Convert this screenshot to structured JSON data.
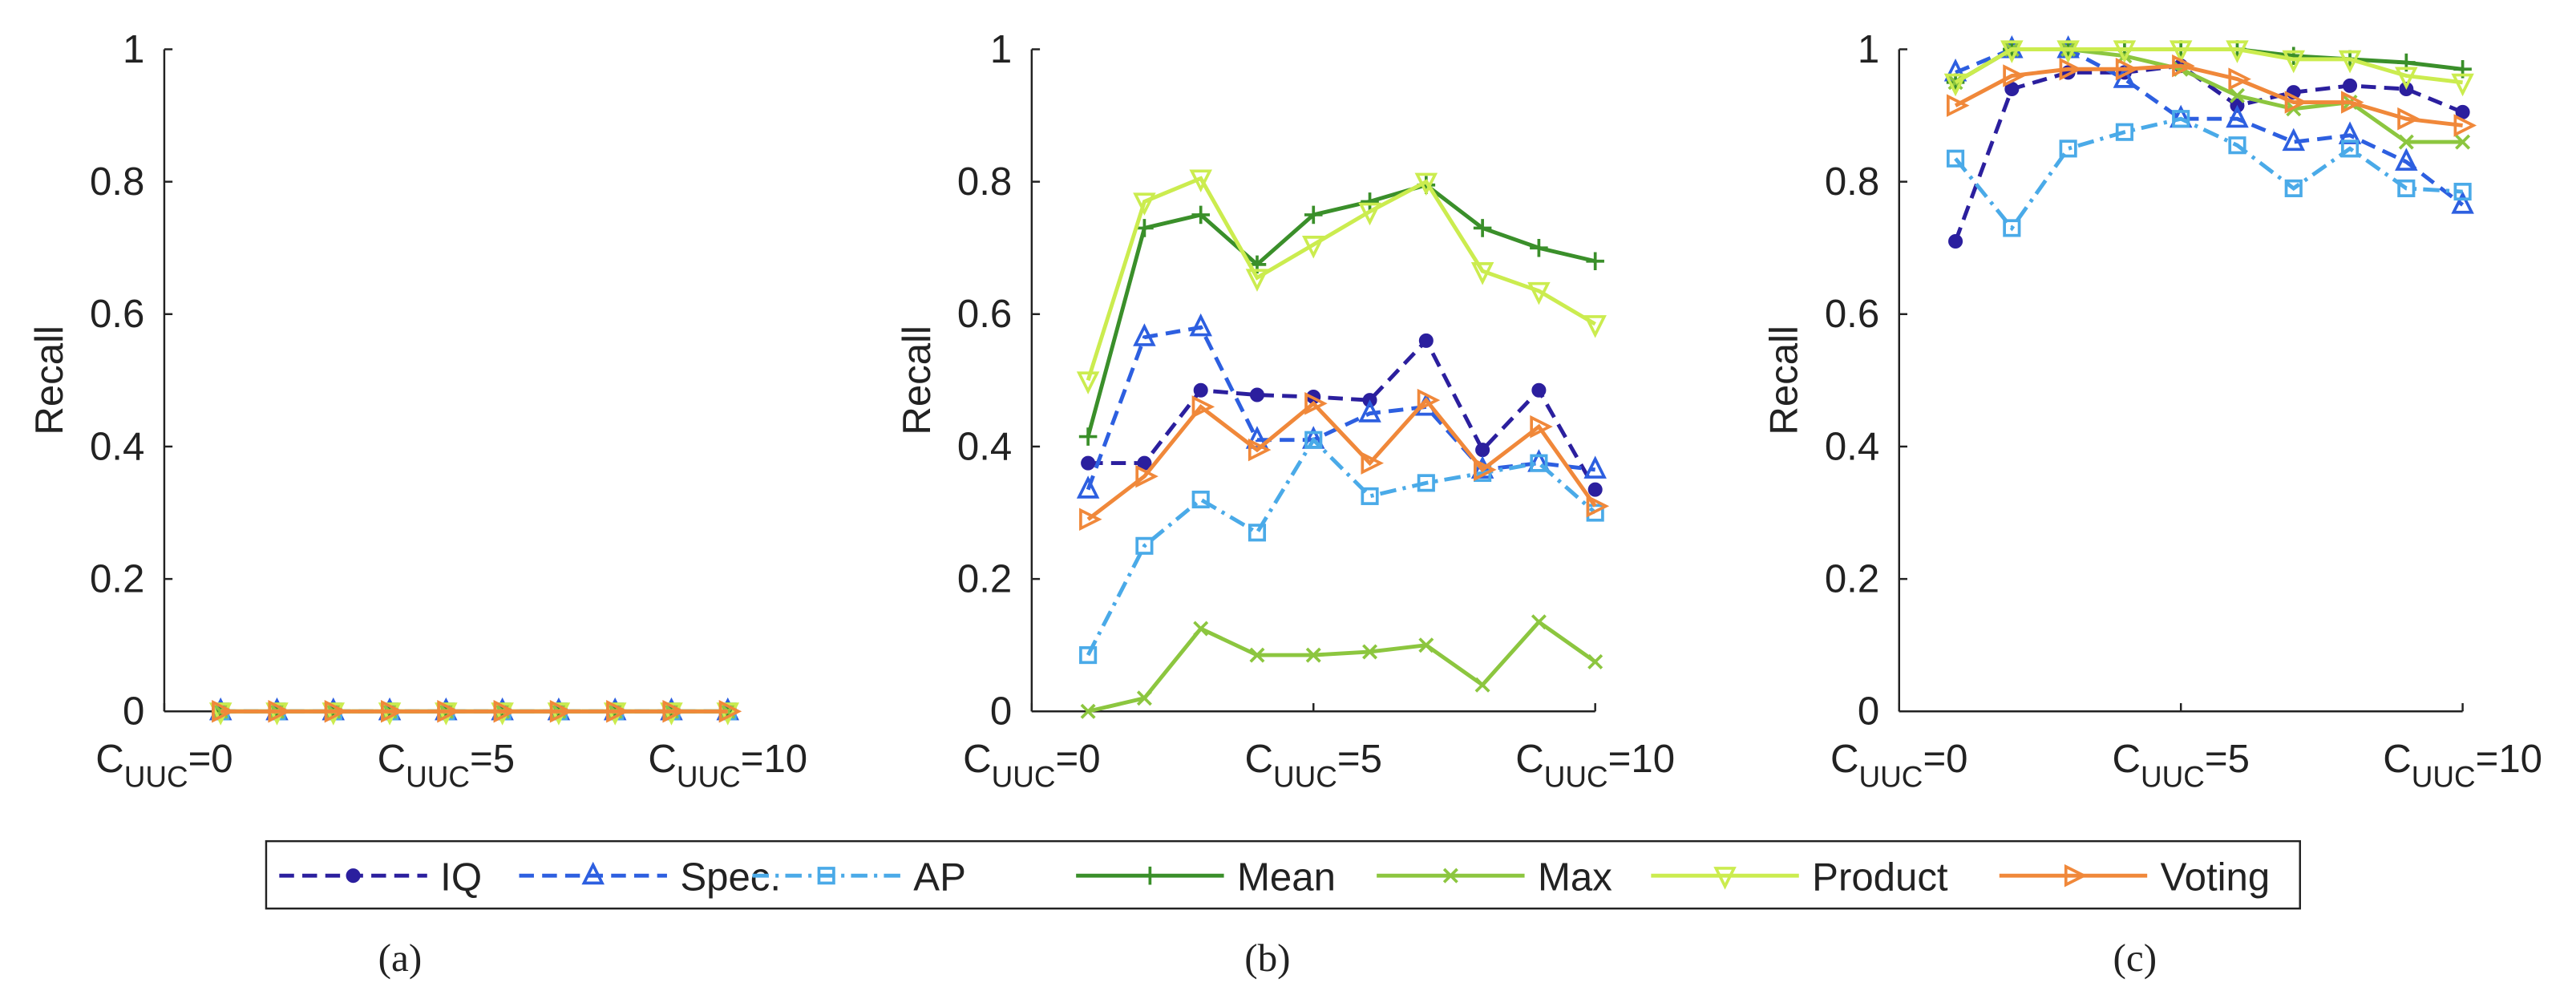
{
  "chart_data": [
    {
      "type": "line",
      "label": "(a)",
      "ylabel": "Recall",
      "x_subscript": "UUC",
      "x": [
        1,
        2,
        3,
        4,
        5,
        6,
        7,
        8,
        9,
        10
      ],
      "xlim": [
        0,
        10
      ],
      "xticks": [
        {
          "value": 0,
          "label": "CUUC=0"
        },
        {
          "value": 5,
          "label": "CUUC=5"
        },
        {
          "value": 10,
          "label": "CUUC=10"
        }
      ],
      "ylim": [
        0,
        1
      ],
      "yticks": [
        0,
        0.2,
        0.4,
        0.6,
        0.8,
        1
      ],
      "series": [
        {
          "name": "IQ",
          "color": "#2b1f9e",
          "dash": "dash",
          "marker": "circle",
          "values": [
            0,
            0,
            0,
            0,
            0,
            0,
            0,
            0,
            0,
            0
          ]
        },
        {
          "name": "Spec.",
          "color": "#2d5fe0",
          "dash": "dash",
          "marker": "triangle",
          "values": [
            0,
            0,
            0,
            0,
            0,
            0,
            0,
            0,
            0,
            0
          ]
        },
        {
          "name": "AP",
          "color": "#4aaae8",
          "dash": "dashdot",
          "marker": "square",
          "values": [
            0,
            0,
            0,
            0,
            0,
            0,
            0,
            0,
            0,
            0
          ]
        },
        {
          "name": "Mean",
          "color": "#3a8f2a",
          "dash": "solid",
          "marker": "plus",
          "values": [
            0,
            0,
            0,
            0,
            0,
            0,
            0,
            0,
            0,
            0
          ]
        },
        {
          "name": "Max",
          "color": "#8cc63f",
          "dash": "solid",
          "marker": "x",
          "values": [
            0,
            0,
            0,
            0,
            0,
            0,
            0,
            0,
            0,
            0
          ]
        },
        {
          "name": "Product",
          "color": "#cbec4f",
          "dash": "solid",
          "marker": "down",
          "values": [
            0,
            0,
            0,
            0,
            0,
            0,
            0,
            0,
            0,
            0
          ]
        },
        {
          "name": "Voting",
          "color": "#f0883a",
          "dash": "solid",
          "marker": "right",
          "values": [
            0,
            0,
            0,
            0,
            0,
            0,
            0,
            0,
            0,
            0
          ]
        }
      ]
    },
    {
      "type": "line",
      "label": "(b)",
      "ylabel": "Recall",
      "x_subscript": "UUC",
      "x": [
        1,
        2,
        3,
        4,
        5,
        6,
        7,
        8,
        9,
        10
      ],
      "xlim": [
        0,
        10
      ],
      "xticks": [
        {
          "value": 0,
          "label": "CUUC=0"
        },
        {
          "value": 5,
          "label": "CUUC=5"
        },
        {
          "value": 10,
          "label": "CUUC=10"
        }
      ],
      "ylim": [
        0,
        1
      ],
      "yticks": [
        0,
        0.2,
        0.4,
        0.6,
        0.8,
        1
      ],
      "series": [
        {
          "name": "IQ",
          "color": "#2b1f9e",
          "dash": "dash",
          "marker": "circle",
          "values": [
            0.375,
            0.375,
            0.485,
            0.478,
            0.475,
            0.47,
            0.56,
            0.395,
            0.485,
            0.335
          ]
        },
        {
          "name": "Spec.",
          "color": "#2d5fe0",
          "dash": "dash",
          "marker": "triangle",
          "values": [
            0.335,
            0.565,
            0.58,
            0.41,
            0.41,
            0.45,
            0.46,
            0.365,
            0.375,
            0.365
          ]
        },
        {
          "name": "AP",
          "color": "#4aaae8",
          "dash": "dashdot",
          "marker": "square",
          "values": [
            0.085,
            0.25,
            0.32,
            0.27,
            0.41,
            0.325,
            0.345,
            0.36,
            0.375,
            0.3
          ]
        },
        {
          "name": "Mean",
          "color": "#3a8f2a",
          "dash": "solid",
          "marker": "plus",
          "values": [
            0.415,
            0.73,
            0.75,
            0.675,
            0.75,
            0.77,
            0.795,
            0.73,
            0.7,
            0.68
          ]
        },
        {
          "name": "Max",
          "color": "#8cc63f",
          "dash": "solid",
          "marker": "x",
          "values": [
            0,
            0.02,
            0.125,
            0.085,
            0.085,
            0.09,
            0.1,
            0.04,
            0.135,
            0.075
          ]
        },
        {
          "name": "Product",
          "color": "#cbec4f",
          "dash": "solid",
          "marker": "down",
          "values": [
            0.5,
            0.77,
            0.805,
            0.655,
            0.705,
            0.755,
            0.8,
            0.665,
            0.635,
            0.585
          ]
        },
        {
          "name": "Voting",
          "color": "#f0883a",
          "dash": "solid",
          "marker": "right",
          "values": [
            0.29,
            0.355,
            0.46,
            0.395,
            0.465,
            0.375,
            0.47,
            0.365,
            0.43,
            0.31
          ]
        }
      ]
    },
    {
      "type": "line",
      "label": "(c)",
      "ylabel": "Recall",
      "x_subscript": "UUC",
      "x": [
        1,
        2,
        3,
        4,
        5,
        6,
        7,
        8,
        9,
        10
      ],
      "xlim": [
        0,
        10
      ],
      "xticks": [
        {
          "value": 0,
          "label": "CUUC=0"
        },
        {
          "value": 5,
          "label": "CUUC=5"
        },
        {
          "value": 10,
          "label": "CUUC=10"
        }
      ],
      "ylim": [
        0,
        1
      ],
      "yticks": [
        0,
        0.2,
        0.4,
        0.6,
        0.8,
        1
      ],
      "series": [
        {
          "name": "IQ",
          "color": "#2b1f9e",
          "dash": "dash",
          "marker": "circle",
          "values": [
            0.71,
            0.94,
            0.965,
            0.965,
            0.975,
            0.915,
            0.935,
            0.945,
            0.94,
            0.905
          ]
        },
        {
          "name": "Spec.",
          "color": "#2d5fe0",
          "dash": "dash",
          "marker": "triangle",
          "values": [
            0.965,
            1,
            1,
            0.955,
            0.895,
            0.895,
            0.86,
            0.87,
            0.83,
            0.765
          ]
        },
        {
          "name": "AP",
          "color": "#4aaae8",
          "dash": "dashdot",
          "marker": "square",
          "values": [
            0.835,
            0.73,
            0.85,
            0.875,
            0.895,
            0.855,
            0.79,
            0.85,
            0.79,
            0.785
          ]
        },
        {
          "name": "Mean",
          "color": "#3a8f2a",
          "dash": "solid",
          "marker": "plus",
          "values": [
            0.95,
            1,
            1,
            1,
            1,
            1,
            0.99,
            0.985,
            0.98,
            0.97
          ]
        },
        {
          "name": "Max",
          "color": "#8cc63f",
          "dash": "solid",
          "marker": "x",
          "values": [
            0.95,
            1,
            1,
            0.99,
            0.97,
            0.93,
            0.91,
            0.92,
            0.86,
            0.86
          ]
        },
        {
          "name": "Product",
          "color": "#cbec4f",
          "dash": "solid",
          "marker": "down",
          "values": [
            0.95,
            1,
            1,
            1,
            1,
            1,
            0.985,
            0.985,
            0.96,
            0.95
          ]
        },
        {
          "name": "Voting",
          "color": "#f0883a",
          "dash": "solid",
          "marker": "right",
          "values": [
            0.915,
            0.96,
            0.97,
            0.97,
            0.975,
            0.955,
            0.92,
            0.92,
            0.895,
            0.885
          ]
        }
      ]
    }
  ]
}
